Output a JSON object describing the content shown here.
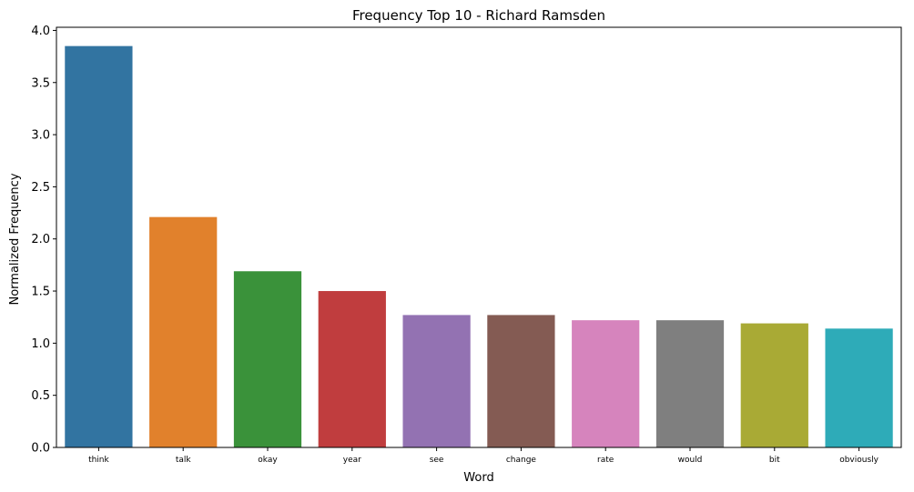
{
  "chart_data": {
    "type": "bar",
    "title": "Frequency Top 10 - Richard Ramsden",
    "xlabel": "Word",
    "ylabel": "Normalized Frequency",
    "categories": [
      "think",
      "talk",
      "okay",
      "year",
      "see",
      "change",
      "rate",
      "would",
      "bit",
      "obviously"
    ],
    "values": [
      3.85,
      2.21,
      1.69,
      1.5,
      1.27,
      1.27,
      1.22,
      1.22,
      1.19,
      1.14
    ],
    "colors": [
      "#3274a1",
      "#e1812c",
      "#3a923a",
      "#c03d3e",
      "#9372b2",
      "#845b53",
      "#d684bd",
      "#7f7f7f",
      "#a9aa35",
      "#2eabb8"
    ],
    "ylim": [
      0,
      4.03
    ],
    "yticks": [
      0.0,
      0.5,
      1.0,
      1.5,
      2.0,
      2.5,
      3.0,
      3.5,
      4.0
    ],
    "ytick_labels": [
      "0.0",
      "0.5",
      "1.0",
      "1.5",
      "2.0",
      "2.5",
      "3.0",
      "3.5",
      "4.0"
    ],
    "grid": false,
    "legend": "none"
  }
}
